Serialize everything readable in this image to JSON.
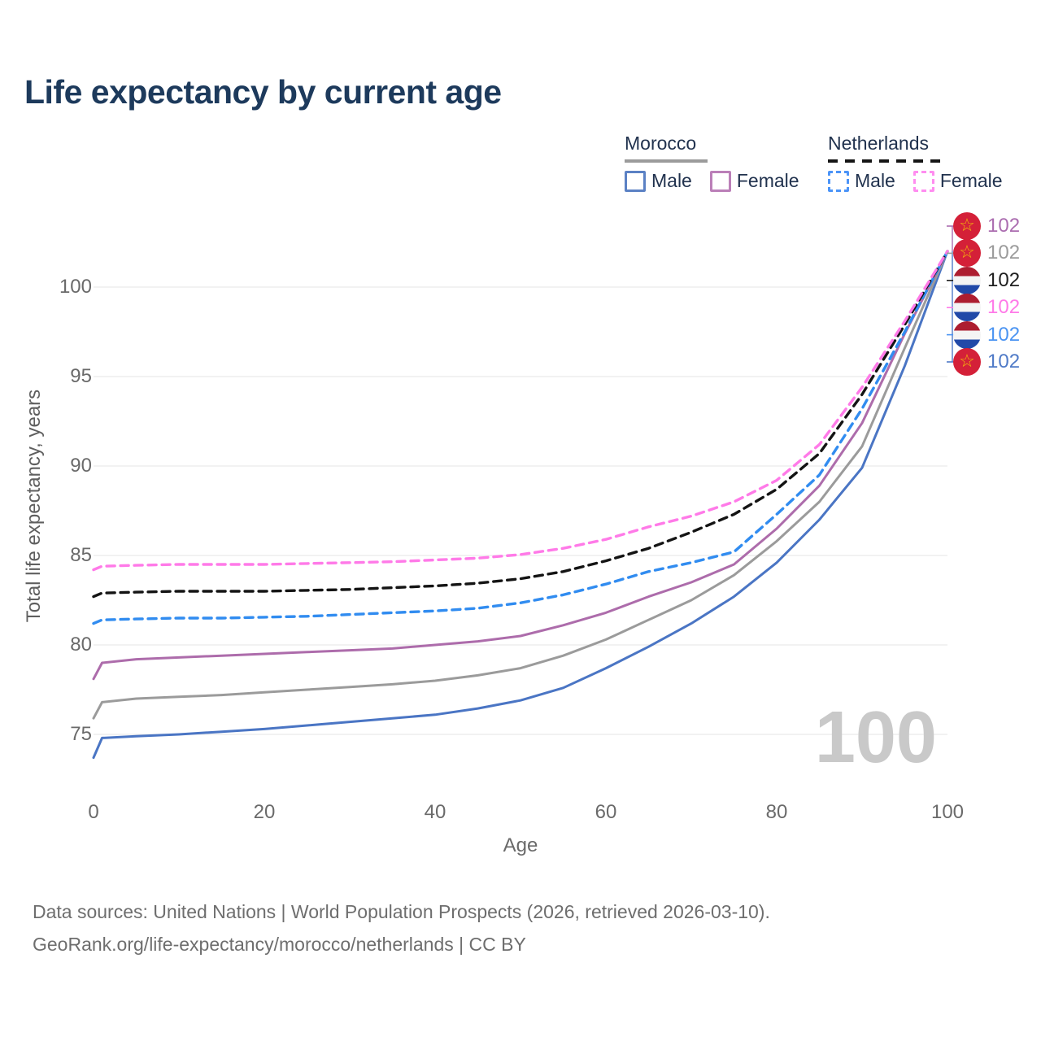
{
  "title": "Life expectancy by current age",
  "watermark": "100",
  "legend": {
    "groups": [
      {
        "name": "Morocco",
        "line_style": "solid",
        "underline_color": "#9b9b9b",
        "items": [
          {
            "label": "Male",
            "color": "#5b81c4",
            "dash": false
          },
          {
            "label": "Female",
            "color": "#bb7fb8",
            "dash": false
          }
        ]
      },
      {
        "name": "Netherlands",
        "line_style": "dashed",
        "underline_color": "#151515",
        "items": [
          {
            "label": "Male",
            "color": "#4b94f8",
            "dash": true
          },
          {
            "label": "Female",
            "color": "#ff8df0",
            "dash": true
          }
        ]
      }
    ]
  },
  "chart_data": {
    "type": "line",
    "title": "Life expectancy by current age",
    "xlabel": "Age",
    "ylabel": "Total life expectancy, years",
    "xlim": [
      0,
      100
    ],
    "ylim": [
      73,
      103
    ],
    "xticks": [
      0,
      20,
      40,
      60,
      80,
      100
    ],
    "yticks": [
      75,
      80,
      85,
      90,
      95,
      100
    ],
    "grid": "horizontal",
    "legend_position": "top-right",
    "x": [
      0,
      1,
      5,
      10,
      15,
      20,
      25,
      30,
      35,
      40,
      45,
      50,
      55,
      60,
      65,
      70,
      75,
      80,
      85,
      90,
      95,
      100
    ],
    "series": [
      {
        "name": "Morocco Male",
        "color": "#4a75c4",
        "dash": "solid",
        "values": [
          73.7,
          74.8,
          74.9,
          75.0,
          75.15,
          75.3,
          75.5,
          75.7,
          75.9,
          76.1,
          76.45,
          76.9,
          77.6,
          78.7,
          79.9,
          81.2,
          82.7,
          84.6,
          87.0,
          89.9,
          95.6,
          102
        ]
      },
      {
        "name": "Morocco",
        "color": "#9b9b9b",
        "dash": "solid",
        "values": [
          75.9,
          76.8,
          77.0,
          77.1,
          77.2,
          77.35,
          77.5,
          77.65,
          77.8,
          78.0,
          78.3,
          78.7,
          79.4,
          80.3,
          81.4,
          82.5,
          83.9,
          85.8,
          88.0,
          91.1,
          96.6,
          102
        ]
      },
      {
        "name": "Morocco Female",
        "color": "#ad6cab",
        "dash": "solid",
        "values": [
          78.1,
          79.0,
          79.2,
          79.3,
          79.4,
          79.5,
          79.6,
          79.7,
          79.8,
          80.0,
          80.2,
          80.5,
          81.1,
          81.8,
          82.7,
          83.5,
          84.5,
          86.5,
          88.9,
          92.4,
          97.4,
          102
        ]
      },
      {
        "name": "Netherlands Male",
        "color": "#318cf0",
        "dash": "dashed",
        "values": [
          81.2,
          81.4,
          81.45,
          81.5,
          81.5,
          81.55,
          81.6,
          81.7,
          81.8,
          81.9,
          82.05,
          82.35,
          82.8,
          83.4,
          84.1,
          84.6,
          85.2,
          87.3,
          89.5,
          93.2,
          97.5,
          102
        ]
      },
      {
        "name": "Netherlands",
        "color": "#141414",
        "dash": "dashed",
        "values": [
          82.7,
          82.9,
          82.95,
          83.0,
          83.0,
          83.0,
          83.05,
          83.1,
          83.2,
          83.3,
          83.45,
          83.7,
          84.1,
          84.7,
          85.4,
          86.3,
          87.3,
          88.7,
          90.7,
          94.0,
          97.9,
          102
        ]
      },
      {
        "name": "Netherlands Female",
        "color": "#ff7ae8",
        "dash": "dashed",
        "values": [
          84.2,
          84.4,
          84.45,
          84.5,
          84.5,
          84.5,
          84.55,
          84.6,
          84.65,
          84.75,
          84.85,
          85.05,
          85.4,
          85.9,
          86.6,
          87.2,
          88.0,
          89.2,
          91.2,
          94.4,
          98.1,
          102
        ]
      }
    ],
    "end_labels": [
      {
        "flag": "morocco",
        "value": "102",
        "color": "#ab6db0"
      },
      {
        "flag": "morocco",
        "value": "102",
        "color": "#9b9b9b"
      },
      {
        "flag": "netherlands",
        "value": "102",
        "color": "#1f1f1f"
      },
      {
        "flag": "netherlands",
        "value": "102",
        "color": "#ff7ae8"
      },
      {
        "flag": "netherlands",
        "value": "102",
        "color": "#4b94f2"
      },
      {
        "flag": "morocco",
        "value": "102",
        "color": "#4f7ac7"
      }
    ]
  },
  "footer": {
    "line1": "Data sources: United Nations | World Population Prospects (2026, retrieved 2026-03-10).",
    "line2": "GeoRank.org/life-expectancy/morocco/netherlands | CC BY"
  }
}
